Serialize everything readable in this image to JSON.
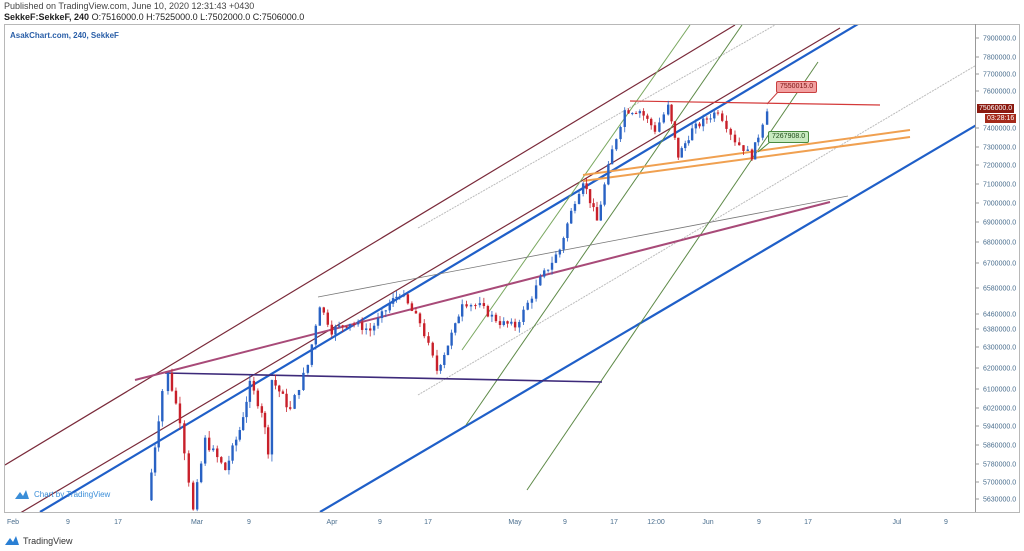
{
  "header": {
    "published": "Published on TradingView.com, June 10, 2020 12:31:43 +0430",
    "symbol": "SekkeF:SekkeF, 240",
    "ohlc": "O:7516000.0 H:7525000.0 L:7502000.0 C:7506000.0"
  },
  "legend": "AsakChart.com, 240, SekkeF",
  "price_tag": {
    "value": "7506000.0",
    "countdown": "03:28:16",
    "color": "#8b1a10"
  },
  "callouts": {
    "high": "7550015.0",
    "low": "7267908.0"
  },
  "watermark": "Chart by TradingView",
  "brand": "TradingView",
  "chart_data": {
    "type": "candlestick",
    "title": "SekkeF:SekkeF, 240",
    "x_unit": "days since Feb 1, 2020",
    "x_ticks": [
      "Feb",
      "9",
      "17",
      "Mar",
      "9",
      "Apr",
      "9",
      "17",
      "May",
      "9",
      "17",
      "12:00",
      "Jun",
      "9",
      "17",
      "Jul",
      "9"
    ],
    "y_ticks": [
      "7900000.0",
      "7800000.0",
      "7700000.0",
      "7600000.0",
      "7400000.0",
      "7300000.0",
      "7200000.0",
      "7100000.0",
      "7000000.0",
      "6900000.0",
      "6800000.0",
      "6700000.0",
      "6580000.0",
      "6460000.0",
      "6380000.0",
      "6300000.0",
      "6200000.0",
      "6100000.0",
      "6020000.0",
      "5940000.0",
      "5860000.0",
      "5780000.0",
      "5700000.0",
      "5630000.0"
    ],
    "up_color": "#2962c4",
    "down_color": "#c8202a",
    "price_path": [
      [
        21.4,
        5625000
      ],
      [
        23.7,
        6095000
      ],
      [
        24.6,
        6170000
      ],
      [
        26.5,
        5970000
      ],
      [
        28.6,
        5580000
      ],
      [
        30.5,
        5880000
      ],
      [
        33.7,
        5755000
      ],
      [
        36,
        5925000
      ],
      [
        37.6,
        6120000
      ],
      [
        39.5,
        6010000
      ],
      [
        40.5,
        5840000
      ],
      [
        41.1,
        6145000
      ],
      [
        44,
        6010000
      ],
      [
        46.8,
        6215000
      ],
      [
        48.7,
        6505000
      ],
      [
        50.6,
        6375000
      ],
      [
        53.5,
        6415000
      ],
      [
        56.7,
        6375000
      ],
      [
        59.8,
        6505000
      ],
      [
        61.4,
        6560000
      ],
      [
        64.6,
        6415000
      ],
      [
        67.3,
        6190000
      ],
      [
        70.2,
        6395000
      ],
      [
        71.3,
        6520000
      ],
      [
        74.1,
        6495000
      ],
      [
        77.3,
        6415000
      ],
      [
        79.7,
        6395000
      ],
      [
        83.7,
        6620000
      ],
      [
        86.8,
        6765000
      ],
      [
        89.2,
        7015000
      ],
      [
        90.5,
        7120000
      ],
      [
        92.7,
        6905000
      ],
      [
        95.1,
        7280000
      ],
      [
        97.1,
        7495000
      ],
      [
        99.5,
        7495000
      ],
      [
        101.9,
        7390000
      ],
      [
        104,
        7515000
      ],
      [
        105.6,
        7250000
      ],
      [
        107.8,
        7390000
      ],
      [
        111.9,
        7495000
      ],
      [
        114.6,
        7335000
      ],
      [
        117.3,
        7250000
      ],
      [
        118.3,
        7360000
      ],
      [
        119.7,
        7506000
      ]
    ]
  }
}
